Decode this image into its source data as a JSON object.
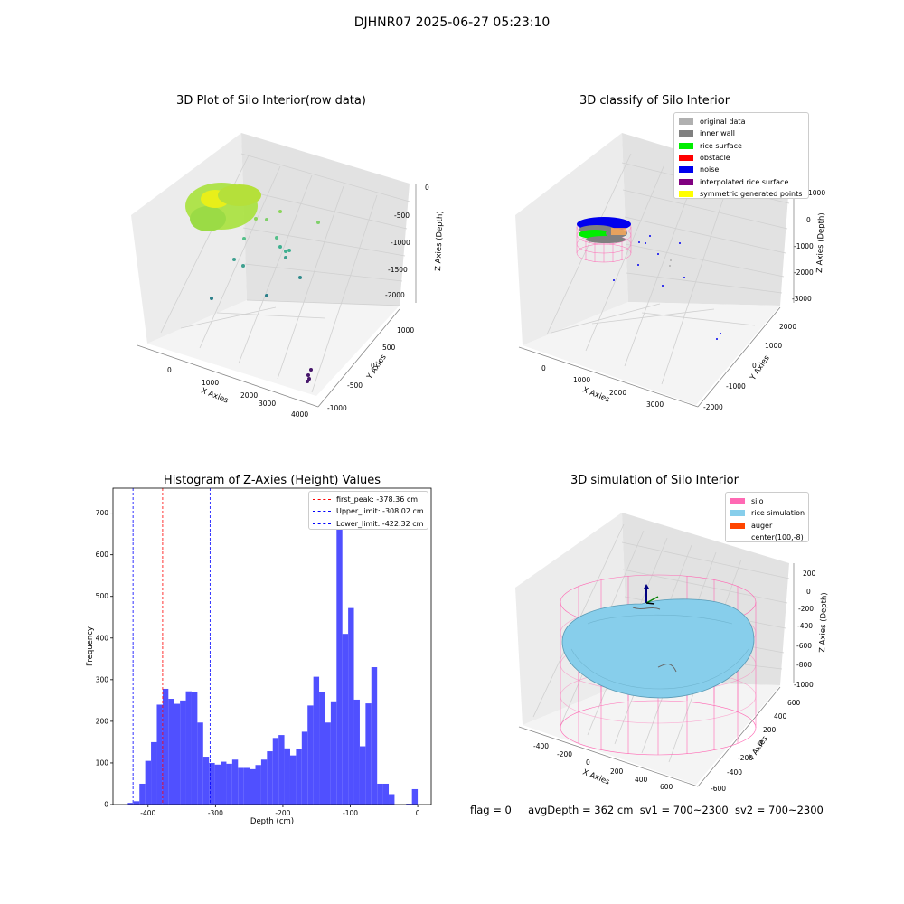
{
  "figure_title": "DJHNR07 2025-06-27 05:23:10",
  "footer": {
    "flag": "flag = 0",
    "avg_depth": "avgDepth = 362 cm",
    "sv1": "sv1 = 700~2300",
    "sv2": "sv2 = 700~2300"
  },
  "plot_raw": {
    "title": "3D Plot of Silo Interior(row data)",
    "xlabel": "X Axies",
    "ylabel": "Y Axies",
    "zlabel": "Z Axies (Depth)",
    "x_ticks": [
      "0",
      "1000",
      "2000",
      "3000",
      "4000"
    ],
    "y_ticks": [
      "-1000",
      "-500",
      "0",
      "500",
      "1000"
    ],
    "z_ticks": [
      "0",
      "-500",
      "-1000",
      "-1500",
      "-2000"
    ]
  },
  "plot_classify": {
    "title": "3D classify of Silo Interior",
    "xlabel": "X Axies",
    "ylabel": "Y Axies",
    "zlabel": "Z Axies (Depth)",
    "x_ticks": [
      "0",
      "1000",
      "2000",
      "3000"
    ],
    "y_ticks": [
      "-2000",
      "-1000",
      "0",
      "1000",
      "2000"
    ],
    "z_ticks": [
      "-3000",
      "-2000",
      "-1000",
      "0",
      "1000"
    ],
    "legend": [
      {
        "label": "original data",
        "color": "#b0b0b0"
      },
      {
        "label": "inner wall",
        "color": "#808080"
      },
      {
        "label": "rice surface",
        "color": "#00ee00"
      },
      {
        "label": "obstacle",
        "color": "#ff0000"
      },
      {
        "label": "noise",
        "color": "#0000ee"
      },
      {
        "label": "interpolated rice surface",
        "color": "#800080"
      },
      {
        "label": "symmetric generated points",
        "color": "#ffff00"
      }
    ]
  },
  "plot_sim": {
    "title": "3D simulation of Silo Interior",
    "xlabel": "X Axies",
    "ylabel": "Y Axies",
    "zlabel": "Z Axies (Depth)",
    "x_ticks": [
      "-400",
      "-200",
      "0",
      "200",
      "400",
      "600"
    ],
    "y_ticks": [
      "-600",
      "-400",
      "-200",
      "0",
      "200",
      "400",
      "600"
    ],
    "z_ticks": [
      "200",
      "0",
      "-200",
      "-400",
      "-600",
      "-800",
      "-1000"
    ],
    "legend": [
      {
        "label": "silo",
        "color": "#ff69b4"
      },
      {
        "label": "rice simulation",
        "color": "#87ceeb"
      },
      {
        "label": "auger",
        "color": "#ff4500"
      },
      {
        "label": "center(100,-8)",
        "color": ""
      }
    ]
  },
  "chart_data": {
    "type": "bar",
    "title": "Histogram of Z-Axies (Height) Values",
    "xlabel": "Depth (cm)",
    "ylabel": "Frequency",
    "xlim": [
      -452,
      20
    ],
    "ylim": [
      0,
      760
    ],
    "x_ticks": [
      -400,
      -300,
      -200,
      -100,
      0
    ],
    "y_ticks": [
      0,
      100,
      200,
      300,
      400,
      500,
      600,
      700
    ],
    "bin_width": 8.6,
    "bins": [
      {
        "x0": -430,
        "v": 4
      },
      {
        "x0": -421.4,
        "v": 8
      },
      {
        "x0": -412.8,
        "v": 50
      },
      {
        "x0": -404.2,
        "v": 105
      },
      {
        "x0": -395.6,
        "v": 150
      },
      {
        "x0": -387,
        "v": 240
      },
      {
        "x0": -378.4,
        "v": 278
      },
      {
        "x0": -369.8,
        "v": 254
      },
      {
        "x0": -361.2,
        "v": 242
      },
      {
        "x0": -352.6,
        "v": 250
      },
      {
        "x0": -344,
        "v": 272
      },
      {
        "x0": -335.4,
        "v": 270
      },
      {
        "x0": -326.8,
        "v": 197
      },
      {
        "x0": -318.2,
        "v": 115
      },
      {
        "x0": -309.6,
        "v": 100
      },
      {
        "x0": -301,
        "v": 96
      },
      {
        "x0": -292.4,
        "v": 103
      },
      {
        "x0": -283.8,
        "v": 98
      },
      {
        "x0": -275.2,
        "v": 108
      },
      {
        "x0": -266.6,
        "v": 88
      },
      {
        "x0": -258,
        "v": 88
      },
      {
        "x0": -249.4,
        "v": 85
      },
      {
        "x0": -240.8,
        "v": 95
      },
      {
        "x0": -232.2,
        "v": 108
      },
      {
        "x0": -223.6,
        "v": 128
      },
      {
        "x0": -215,
        "v": 160
      },
      {
        "x0": -206.4,
        "v": 167
      },
      {
        "x0": -197.8,
        "v": 135
      },
      {
        "x0": -189.2,
        "v": 118
      },
      {
        "x0": -180.6,
        "v": 133
      },
      {
        "x0": -172,
        "v": 175
      },
      {
        "x0": -163.4,
        "v": 238
      },
      {
        "x0": -154.8,
        "v": 307
      },
      {
        "x0": -146.2,
        "v": 270
      },
      {
        "x0": -137.6,
        "v": 197
      },
      {
        "x0": -129,
        "v": 248
      },
      {
        "x0": -120.4,
        "v": 720
      },
      {
        "x0": -111.8,
        "v": 410
      },
      {
        "x0": -103.2,
        "v": 472
      },
      {
        "x0": -94.6,
        "v": 252
      },
      {
        "x0": -86,
        "v": 140
      },
      {
        "x0": -77.4,
        "v": 243
      },
      {
        "x0": -68.8,
        "v": 330
      },
      {
        "x0": -60.2,
        "v": 50
      },
      {
        "x0": -51.6,
        "v": 50
      },
      {
        "x0": -43,
        "v": 25
      },
      {
        "x0": -34.4,
        "v": 0
      },
      {
        "x0": -25.8,
        "v": 0
      },
      {
        "x0": -17.2,
        "v": 2
      },
      {
        "x0": -8.6,
        "v": 37
      }
    ],
    "lines": [
      {
        "name": "first_peak: -378.36 cm",
        "x": -378.36,
        "color": "#ff0000"
      },
      {
        "name": "Upper_limit: -308.02 cm",
        "x": -308.02,
        "color": "#0000ff"
      },
      {
        "name": "Lower_limit: -422.32 cm",
        "x": -422.32,
        "color": "#0000ff"
      }
    ],
    "bar_color": "#5050ff"
  }
}
